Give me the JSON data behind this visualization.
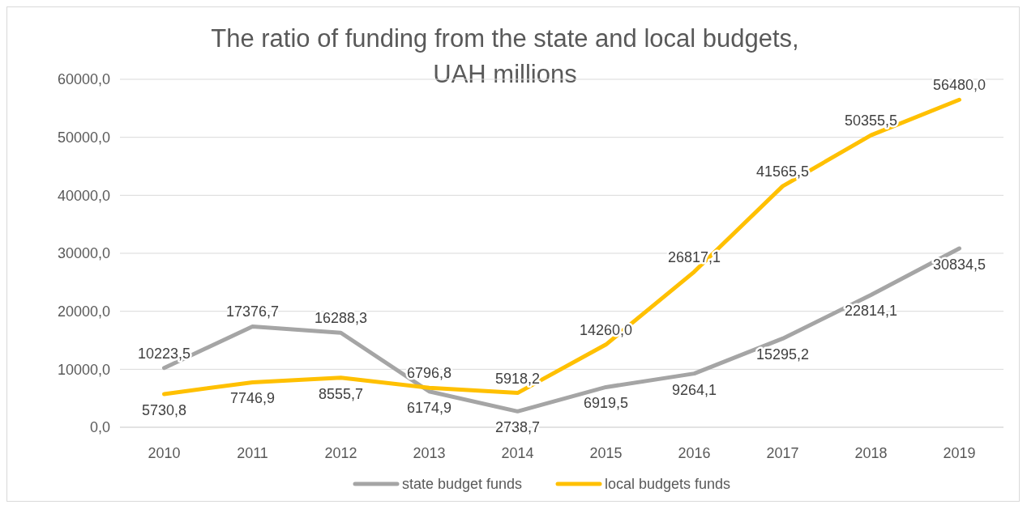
{
  "chart_data": {
    "type": "line",
    "title": "The ratio of funding from the state and local budgets, UAH millions",
    "categories": [
      "2010",
      "2011",
      "2012",
      "2013",
      "2014",
      "2015",
      "2016",
      "2017",
      "2018",
      "2019"
    ],
    "series": [
      {
        "name": "state budget funds",
        "color": "#a5a5a5",
        "values": [
          10223.5,
          17376.7,
          16288.3,
          6174.9,
          2738.7,
          6919.5,
          9264.1,
          15295.2,
          22814.1,
          30834.5
        ],
        "value_labels": [
          "10223,5",
          "17376,7",
          "16288,3",
          "6174,9",
          "2738,7",
          "6919,5",
          "9264,1",
          "15295,2",
          "22814,1",
          "30834,5"
        ]
      },
      {
        "name": "local budgets funds",
        "color": "#ffc000",
        "values": [
          5730.8,
          7746.9,
          8555.7,
          6796.8,
          5918.2,
          14260.0,
          26817.1,
          41565.5,
          50355.5,
          56480.0
        ],
        "value_labels": [
          "5730,8",
          "7746,9",
          "8555,7",
          "6796,8",
          "5918,2",
          "14260,0",
          "26817,1",
          "41565,5",
          "50355,5",
          "56480,0"
        ]
      }
    ],
    "ylim": [
      0,
      60000
    ],
    "yticks": [
      {
        "value": 0,
        "label": "0,0"
      },
      {
        "value": 10000,
        "label": "10000,0"
      },
      {
        "value": 20000,
        "label": "20000,0"
      },
      {
        "value": 30000,
        "label": "30000,0"
      },
      {
        "value": 40000,
        "label": "40000,0"
      },
      {
        "value": 50000,
        "label": "50000,0"
      },
      {
        "value": 60000,
        "label": "60000,0"
      }
    ],
    "grid": "y",
    "legend": "bottom",
    "marker": "none",
    "line_style": "solid"
  }
}
